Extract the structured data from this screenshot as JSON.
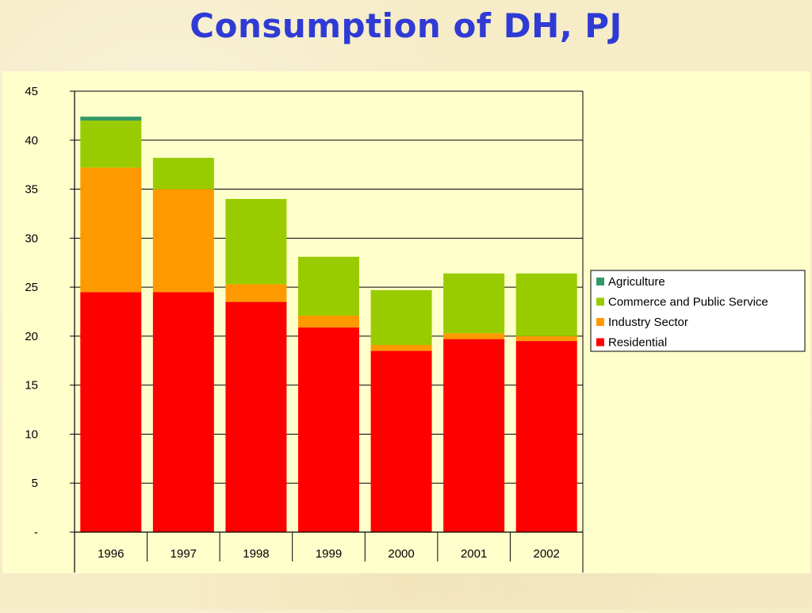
{
  "title": "Consumption of DH, PJ",
  "chart_data": {
    "type": "bar",
    "stacked": true,
    "title": "",
    "xlabel": "",
    "ylabel": "",
    "ylim": [
      0,
      45
    ],
    "yticks": [
      "-",
      "5",
      "10",
      "15",
      "20",
      "25",
      "30",
      "35",
      "40",
      "45"
    ],
    "grid": true,
    "legend_position": "right",
    "categories": [
      "1996",
      "1997",
      "1998",
      "1999",
      "2000",
      "2001",
      "2002"
    ],
    "series": [
      {
        "name": "Residential",
        "color": "#ff0000",
        "values": [
          24.5,
          24.5,
          23.5,
          20.9,
          18.5,
          19.7,
          19.5
        ]
      },
      {
        "name": "Industry Sector",
        "color": "#ff9900",
        "values": [
          12.7,
          10.5,
          1.8,
          1.2,
          0.6,
          0.6,
          0.5
        ]
      },
      {
        "name": "Commerce and Public Service",
        "color": "#99cc00",
        "values": [
          4.8,
          3.2,
          8.7,
          6.0,
          5.6,
          6.1,
          6.4
        ]
      },
      {
        "name": "Agriculture",
        "color": "#339966",
        "values": [
          0.4,
          0,
          0,
          0,
          0,
          0,
          0
        ]
      }
    ],
    "legend_order": [
      "Agriculture",
      "Commerce and Public Service",
      "Industry Sector",
      "Residential"
    ],
    "plot_background": "#ffffcc"
  }
}
